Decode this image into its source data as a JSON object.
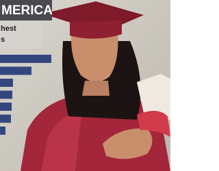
{
  "chart_data": {
    "type": "bar",
    "orientation": "horizontal",
    "title": "MERICA",
    "subtitle": [
      "hest",
      "s"
    ],
    "categories": [
      null,
      null,
      null,
      null,
      null,
      null,
      null
    ],
    "values": [
      75,
      46,
      19,
      18,
      17,
      16,
      8
    ],
    "color": "#33477f",
    "xlim": [
      0,
      100
    ]
  }
}
